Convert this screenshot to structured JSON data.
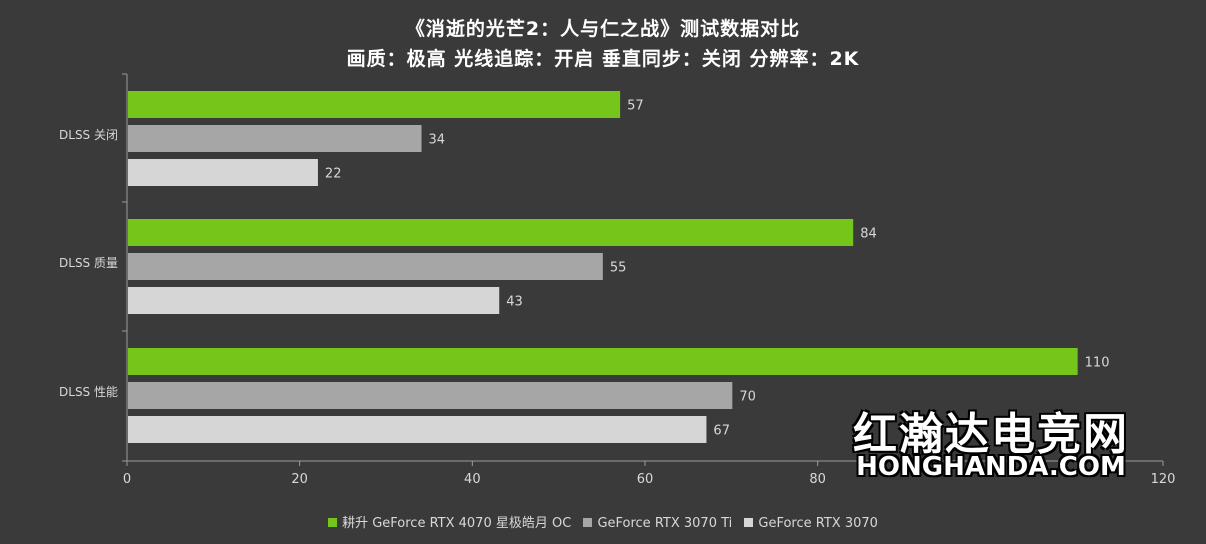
{
  "title_line1": "《消逝的光芒2：人与仁之战》测试数据对比",
  "title_line2": "画质：极高 光线追踪：开启 垂直同步：关闭 分辨率：2K",
  "watermark_cn": "红瀚达电竞网",
  "watermark_en": "HONGHANDA.COM",
  "colors": {
    "background": "#3a3a3a",
    "green": "#76c51a",
    "gray1": "#a6a6a6",
    "gray2": "#d6d6d6"
  },
  "chart_data": {
    "type": "bar",
    "orientation": "horizontal",
    "categories": [
      "DLSS 关闭",
      "DLSS 质量",
      "DLSS 性能"
    ],
    "series": [
      {
        "name": "耕升 GeForce RTX 4070 星极皓月 OC",
        "color": "#76c51a",
        "values": [
          57,
          84,
          110
        ]
      },
      {
        "name": "GeForce RTX 3070 Ti",
        "color": "#a6a6a6",
        "values": [
          34,
          55,
          70
        ]
      },
      {
        "name": "GeForce RTX 3070",
        "color": "#d6d6d6",
        "values": [
          22,
          43,
          67
        ]
      }
    ],
    "xlim": [
      0,
      120
    ],
    "xticks": [
      0,
      20,
      40,
      60,
      80,
      120
    ],
    "legend": "bottom",
    "grid": false
  }
}
